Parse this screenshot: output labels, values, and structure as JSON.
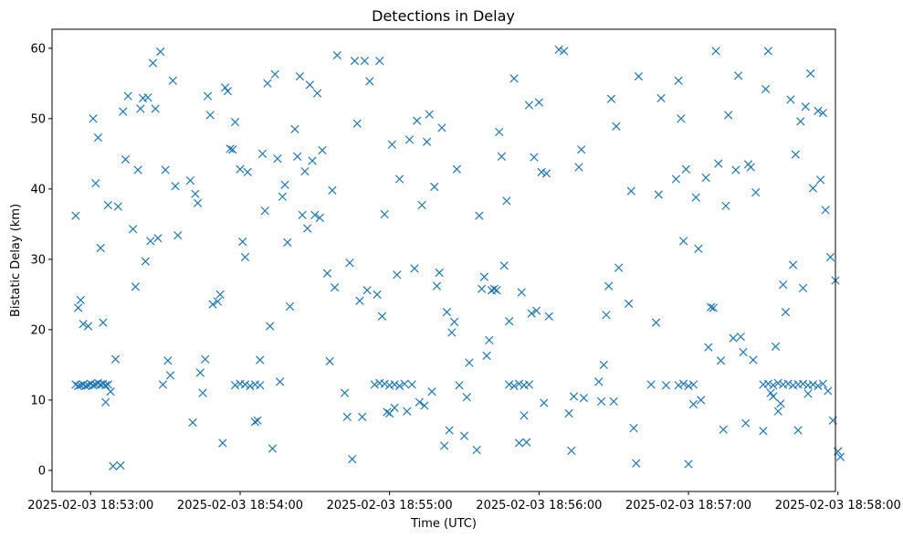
{
  "chart_data": {
    "type": "scatter",
    "title": "Detections in Delay",
    "xlabel": "Time (UTC)",
    "ylabel": "Bistatic Delay (km)",
    "x_unit": "seconds after 2025-02-03 18:53:00 UTC",
    "xlim": [
      -15.5,
      299
    ],
    "ylim": [
      -3,
      62.7
    ],
    "x_ticks": [
      0,
      60,
      120,
      180,
      240,
      300
    ],
    "x_tick_labels": [
      "2025-02-03 18:53:00",
      "2025-02-03 18:54:00",
      "2025-02-03 18:55:00",
      "2025-02-03 18:56:00",
      "2025-02-03 18:57:00",
      "2025-02-03 18:58:00"
    ],
    "y_ticks": [
      0,
      10,
      20,
      30,
      40,
      50,
      60
    ],
    "y_tick_labels": [
      "0",
      "10",
      "20",
      "30",
      "40",
      "50",
      "60"
    ],
    "marker": "x",
    "color": "#1f77b4",
    "grid": false,
    "legend": "none",
    "series": [
      {
        "points": [
          [
            -6,
            12.2
          ],
          [
            -5,
            12.0
          ],
          [
            -4,
            12.1
          ],
          [
            -3,
            12.2
          ],
          [
            -2,
            12.0
          ],
          [
            -1,
            12.1
          ],
          [
            0,
            12.3
          ],
          [
            1,
            12.1
          ],
          [
            2,
            12.2
          ],
          [
            3,
            12.4
          ],
          [
            4,
            12.2
          ],
          [
            5,
            12.3
          ],
          [
            6,
            12.1
          ],
          [
            7,
            12.2
          ],
          [
            58,
            12.1
          ],
          [
            60,
            12.3
          ],
          [
            62,
            12.2
          ],
          [
            64,
            12.0
          ],
          [
            66,
            12.2
          ],
          [
            68,
            12.1
          ],
          [
            114,
            12.2
          ],
          [
            116,
            12.4
          ],
          [
            118,
            12.3
          ],
          [
            120,
            12.1
          ],
          [
            122,
            12.2
          ],
          [
            124,
            12.0
          ],
          [
            126,
            12.3
          ],
          [
            168,
            12.2
          ],
          [
            170,
            12.0
          ],
          [
            172,
            12.3
          ],
          [
            174,
            12.1
          ],
          [
            176,
            12.2
          ],
          [
            236,
            12.1
          ],
          [
            238,
            12.3
          ],
          [
            240,
            12.0
          ],
          [
            242,
            12.2
          ],
          [
            270,
            12.2
          ],
          [
            272,
            12.3
          ],
          [
            274,
            12.1
          ],
          [
            276,
            12.4
          ],
          [
            278,
            12.2
          ],
          [
            280,
            12.3
          ],
          [
            282,
            12.1
          ],
          [
            284,
            12.2
          ],
          [
            286,
            12.3
          ],
          [
            288,
            12.1
          ],
          [
            290,
            12.2
          ],
          [
            292,
            12.0
          ],
          [
            294,
            12.3
          ],
          [
            -6,
            36.2
          ],
          [
            -5,
            23.1
          ],
          [
            -4,
            24.2
          ],
          [
            -3,
            20.8
          ],
          [
            -1,
            20.5
          ],
          [
            1,
            50.0
          ],
          [
            2,
            40.8
          ],
          [
            3,
            47.3
          ],
          [
            4,
            31.6
          ],
          [
            5,
            21.0
          ],
          [
            6,
            9.7
          ],
          [
            7,
            37.7
          ],
          [
            8,
            11.2
          ],
          [
            9,
            0.6
          ],
          [
            10,
            15.8
          ],
          [
            11,
            37.5
          ],
          [
            12,
            0.7
          ],
          [
            13,
            51.0
          ],
          [
            14,
            44.2
          ],
          [
            15,
            53.2
          ],
          [
            17,
            34.3
          ],
          [
            18,
            26.1
          ],
          [
            19,
            42.7
          ],
          [
            20,
            51.4
          ],
          [
            21,
            52.9
          ],
          [
            22,
            29.7
          ],
          [
            23,
            53.0
          ],
          [
            24,
            32.6
          ],
          [
            25,
            57.9
          ],
          [
            26,
            51.4
          ],
          [
            27,
            33.0
          ],
          [
            28,
            59.5
          ],
          [
            29,
            12.2
          ],
          [
            30,
            42.7
          ],
          [
            31,
            15.6
          ],
          [
            32,
            13.5
          ],
          [
            33,
            55.4
          ],
          [
            34,
            40.4
          ],
          [
            35,
            33.4
          ],
          [
            40,
            41.2
          ],
          [
            41,
            6.8
          ],
          [
            42,
            39.3
          ],
          [
            43,
            38.0
          ],
          [
            44,
            13.9
          ],
          [
            45,
            11.0
          ],
          [
            46,
            15.8
          ],
          [
            47,
            53.2
          ],
          [
            48,
            50.5
          ],
          [
            49,
            23.6
          ],
          [
            51,
            24.0
          ],
          [
            52,
            25.0
          ],
          [
            53,
            3.9
          ],
          [
            54,
            54.4
          ],
          [
            55,
            53.9
          ],
          [
            56,
            45.7
          ],
          [
            57,
            45.6
          ],
          [
            58,
            49.5
          ],
          [
            60,
            42.8
          ],
          [
            61,
            32.5
          ],
          [
            62,
            30.3
          ],
          [
            63,
            42.4
          ],
          [
            66,
            6.9
          ],
          [
            67,
            7.1
          ],
          [
            68,
            15.7
          ],
          [
            69,
            45.0
          ],
          [
            70,
            36.9
          ],
          [
            71,
            55.0
          ],
          [
            72,
            20.5
          ],
          [
            73,
            3.1
          ],
          [
            74,
            56.3
          ],
          [
            75,
            44.3
          ],
          [
            76,
            12.6
          ],
          [
            77,
            38.9
          ],
          [
            78,
            40.6
          ],
          [
            79,
            32.4
          ],
          [
            80,
            23.3
          ],
          [
            82,
            48.5
          ],
          [
            83,
            44.6
          ],
          [
            84,
            56.0
          ],
          [
            85,
            36.3
          ],
          [
            86,
            42.5
          ],
          [
            87,
            34.4
          ],
          [
            88,
            54.8
          ],
          [
            89,
            44.0
          ],
          [
            90,
            36.3
          ],
          [
            91,
            53.6
          ],
          [
            92,
            35.9
          ],
          [
            93,
            45.5
          ],
          [
            95,
            28.0
          ],
          [
            96,
            15.5
          ],
          [
            97,
            39.8
          ],
          [
            98,
            26.0
          ],
          [
            99,
            59.0
          ],
          [
            102,
            11.0
          ],
          [
            103,
            7.6
          ],
          [
            104,
            29.5
          ],
          [
            105,
            1.6
          ],
          [
            106,
            58.2
          ],
          [
            107,
            49.3
          ],
          [
            108,
            24.1
          ],
          [
            109,
            7.6
          ],
          [
            110,
            58.2
          ],
          [
            111,
            25.6
          ],
          [
            112,
            55.3
          ],
          [
            115,
            25.0
          ],
          [
            116,
            58.2
          ],
          [
            117,
            21.9
          ],
          [
            118,
            36.4
          ],
          [
            119,
            8.3
          ],
          [
            120,
            8.1
          ],
          [
            121,
            46.3
          ],
          [
            122,
            8.9
          ],
          [
            123,
            27.8
          ],
          [
            124,
            41.4
          ],
          [
            127,
            8.4
          ],
          [
            128,
            47.0
          ],
          [
            129,
            12.2
          ],
          [
            130,
            28.7
          ],
          [
            131,
            49.7
          ],
          [
            132,
            9.7
          ],
          [
            133,
            37.7
          ],
          [
            134,
            9.2
          ],
          [
            135,
            46.7
          ],
          [
            136,
            50.6
          ],
          [
            137,
            11.2
          ],
          [
            138,
            40.3
          ],
          [
            139,
            26.2
          ],
          [
            140,
            28.1
          ],
          [
            141,
            48.7
          ],
          [
            142,
            3.5
          ],
          [
            143,
            22.5
          ],
          [
            144,
            5.7
          ],
          [
            145,
            19.6
          ],
          [
            146,
            21.1
          ],
          [
            147,
            42.8
          ],
          [
            148,
            12.1
          ],
          [
            150,
            4.9
          ],
          [
            151,
            10.4
          ],
          [
            152,
            15.3
          ],
          [
            155,
            2.9
          ],
          [
            156,
            36.2
          ],
          [
            157,
            25.8
          ],
          [
            158,
            27.5
          ],
          [
            159,
            16.3
          ],
          [
            160,
            18.5
          ],
          [
            161,
            25.6
          ],
          [
            162,
            25.8
          ],
          [
            163,
            25.6
          ],
          [
            164,
            48.1
          ],
          [
            165,
            44.6
          ],
          [
            166,
            29.1
          ],
          [
            167,
            38.3
          ],
          [
            168,
            21.2
          ],
          [
            170,
            55.7
          ],
          [
            172,
            3.9
          ],
          [
            173,
            25.3
          ],
          [
            174,
            7.8
          ],
          [
            175,
            4.0
          ],
          [
            176,
            51.9
          ],
          [
            177,
            22.3
          ],
          [
            178,
            44.5
          ],
          [
            179,
            22.7
          ],
          [
            180,
            52.3
          ],
          [
            181,
            42.4
          ],
          [
            182,
            9.6
          ],
          [
            183,
            42.2
          ],
          [
            184,
            21.9
          ],
          [
            188,
            59.8
          ],
          [
            190,
            59.6
          ],
          [
            192,
            8.1
          ],
          [
            193,
            2.8
          ],
          [
            194,
            10.5
          ],
          [
            196,
            43.1
          ],
          [
            197,
            45.6
          ],
          [
            198,
            10.3
          ],
          [
            204,
            12.6
          ],
          [
            205,
            9.8
          ],
          [
            206,
            15.0
          ],
          [
            207,
            22.1
          ],
          [
            208,
            26.2
          ],
          [
            209,
            52.8
          ],
          [
            210,
            9.8
          ],
          [
            211,
            48.9
          ],
          [
            212,
            28.8
          ],
          [
            216,
            23.7
          ],
          [
            217,
            39.7
          ],
          [
            218,
            6.0
          ],
          [
            219,
            1.0
          ],
          [
            220,
            56.0
          ],
          [
            225,
            12.2
          ],
          [
            227,
            21.0
          ],
          [
            228,
            39.2
          ],
          [
            229,
            52.9
          ],
          [
            231,
            12.1
          ],
          [
            235,
            41.4
          ],
          [
            236,
            55.4
          ],
          [
            237,
            50.0
          ],
          [
            238,
            32.6
          ],
          [
            239,
            42.8
          ],
          [
            240,
            0.9
          ],
          [
            242,
            9.4
          ],
          [
            243,
            38.8
          ],
          [
            244,
            31.5
          ],
          [
            245,
            10.0
          ],
          [
            247,
            41.6
          ],
          [
            248,
            17.5
          ],
          [
            249,
            23.2
          ],
          [
            250,
            23.1
          ],
          [
            251,
            59.6
          ],
          [
            252,
            43.6
          ],
          [
            253,
            15.6
          ],
          [
            254,
            5.8
          ],
          [
            255,
            37.6
          ],
          [
            256,
            50.5
          ],
          [
            258,
            18.8
          ],
          [
            259,
            42.7
          ],
          [
            260,
            56.1
          ],
          [
            261,
            19.0
          ],
          [
            262,
            16.8
          ],
          [
            263,
            6.7
          ],
          [
            264,
            43.5
          ],
          [
            265,
            43.1
          ],
          [
            266,
            15.7
          ],
          [
            267,
            39.5
          ],
          [
            270,
            5.6
          ],
          [
            271,
            54.2
          ],
          [
            272,
            59.6
          ],
          [
            273,
            11.0
          ],
          [
            274,
            10.5
          ],
          [
            275,
            17.6
          ],
          [
            276,
            8.4
          ],
          [
            277,
            9.5
          ],
          [
            278,
            26.4
          ],
          [
            279,
            22.5
          ],
          [
            281,
            52.7
          ],
          [
            282,
            29.2
          ],
          [
            283,
            44.9
          ],
          [
            284,
            5.7
          ],
          [
            285,
            49.6
          ],
          [
            286,
            25.9
          ],
          [
            287,
            51.7
          ],
          [
            288,
            10.9
          ],
          [
            289,
            56.4
          ],
          [
            290,
            40.1
          ],
          [
            292,
            51.1
          ],
          [
            293,
            41.3
          ],
          [
            294,
            50.8
          ],
          [
            295,
            37.0
          ],
          [
            296,
            11.3
          ],
          [
            297,
            30.3
          ],
          [
            298,
            7.1
          ],
          [
            299,
            27.0
          ],
          [
            300,
            2.7
          ],
          [
            301,
            1.9
          ]
        ]
      }
    ]
  }
}
